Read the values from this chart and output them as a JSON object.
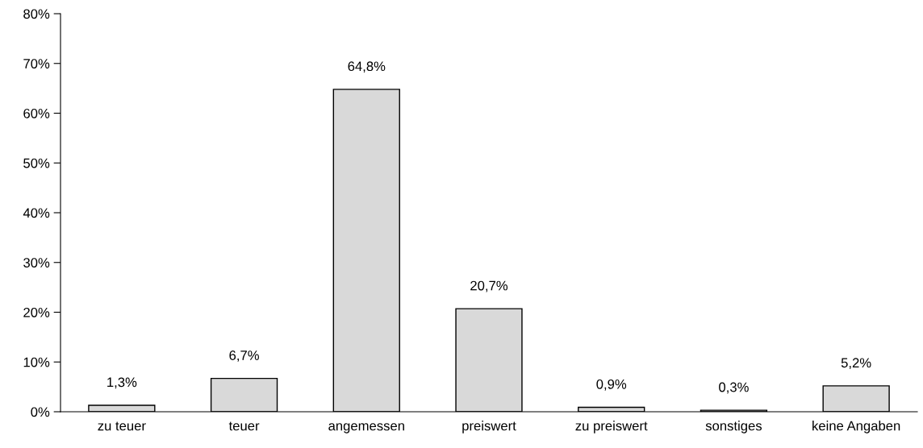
{
  "chart_data": {
    "type": "bar",
    "categories": [
      "zu teuer",
      "teuer",
      "angemessen",
      "preiswert",
      "zu preiswert",
      "sonstiges",
      "keine Angaben"
    ],
    "values": [
      1.3,
      6.7,
      64.8,
      20.7,
      0.9,
      0.3,
      5.2
    ],
    "value_labels": [
      "1,3%",
      "6,7%",
      "64,8%",
      "20,7%",
      "0,9%",
      "0,3%",
      "5,2%"
    ],
    "color": "#d9d9d9",
    "ylim": [
      0,
      80
    ],
    "yticks": [
      {
        "value": 0,
        "label": "0%"
      },
      {
        "value": 10,
        "label": "10%"
      },
      {
        "value": 20,
        "label": "20%"
      },
      {
        "value": 30,
        "label": "30%"
      },
      {
        "value": 40,
        "label": "40%"
      },
      {
        "value": 50,
        "label": "50%"
      },
      {
        "value": 60,
        "label": "60%"
      },
      {
        "value": 70,
        "label": "70%"
      },
      {
        "value": 80,
        "label": "80%"
      }
    ],
    "grid": false,
    "legend": false
  }
}
